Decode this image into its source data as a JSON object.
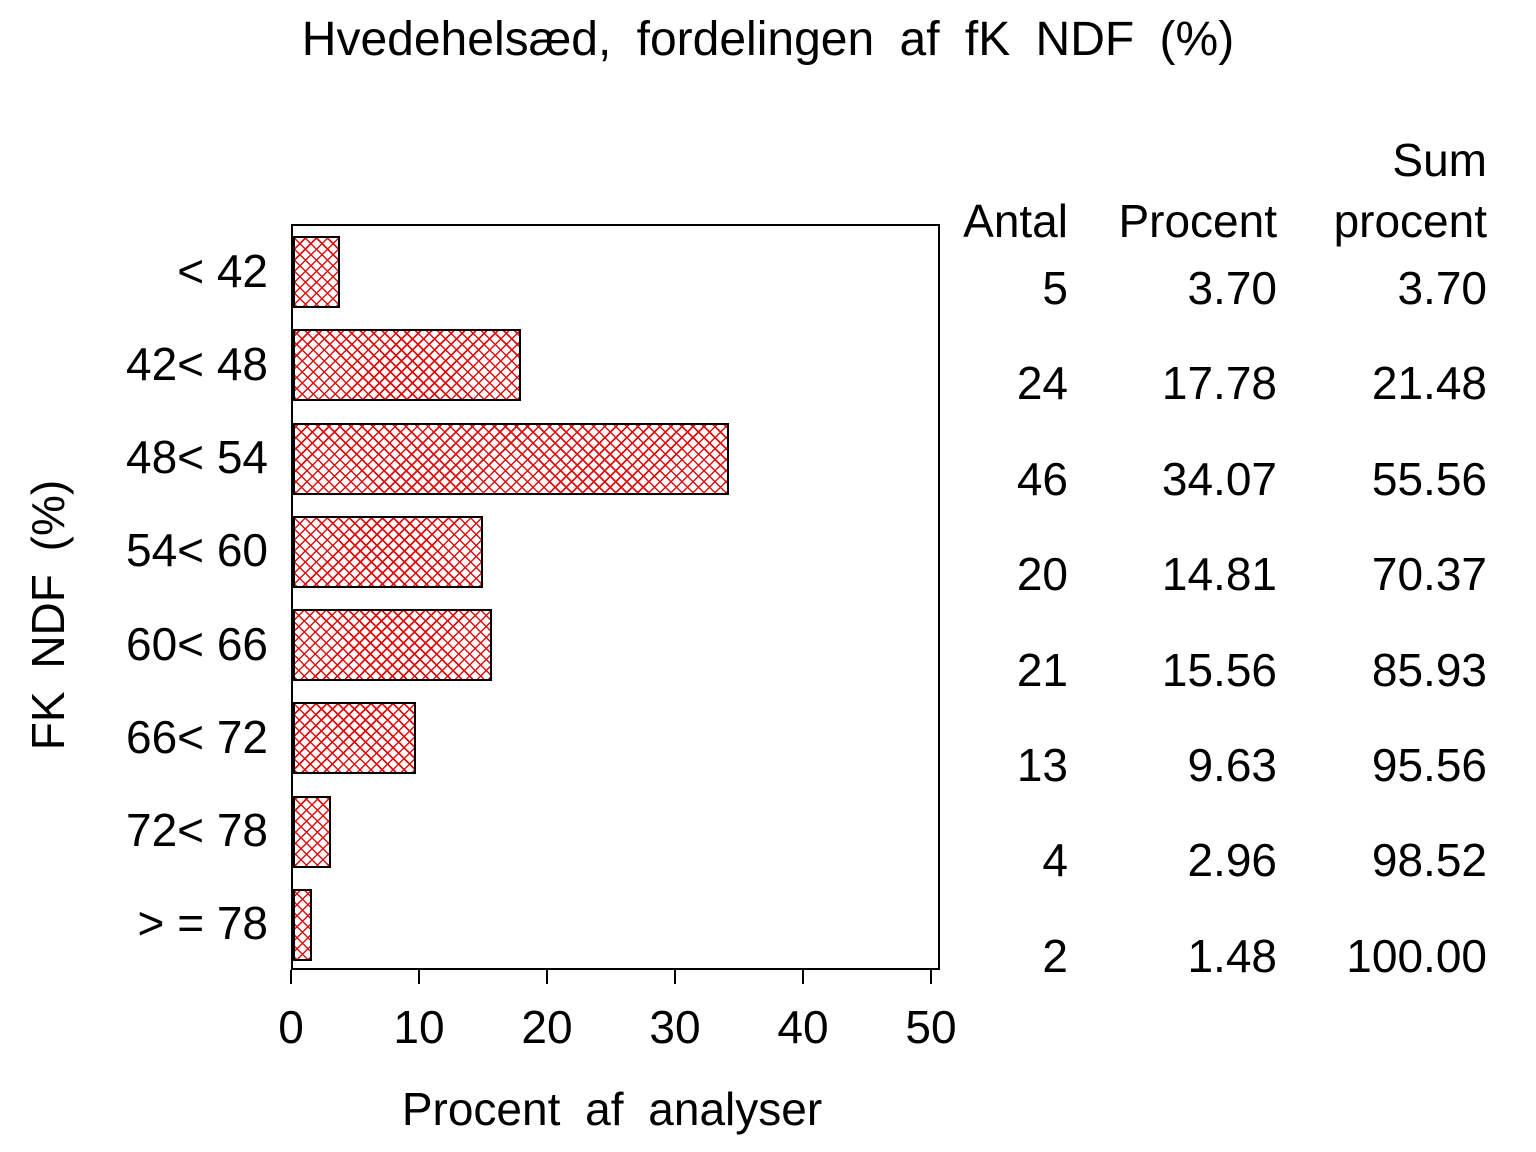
{
  "colors": {
    "bar_hatch": "#e01010",
    "axis": "#000000"
  },
  "chart_data": {
    "type": "bar",
    "orientation": "horizontal",
    "title": "Hvedehelsæd, fordelingen af fK NDF (%)",
    "xlabel": "Procent af analyser",
    "ylabel": "FK NDF (%)",
    "xlim": [
      0,
      50
    ],
    "xticks": [
      0,
      10,
      20,
      30,
      40,
      50
    ],
    "grid": false,
    "categories": [
      "< 42",
      "42< 48",
      "48< 54",
      "54< 60",
      "60< 66",
      "66< 72",
      "72< 78",
      "> = 78"
    ],
    "series": [
      {
        "name": "Procent af analyser",
        "values": [
          3.7,
          17.78,
          34.07,
          14.81,
          15.56,
          9.63,
          2.96,
          1.48
        ]
      }
    ],
    "table": {
      "headers": {
        "antal": "Antal",
        "procent": "Procent",
        "sum_line1": "Sum",
        "sum_line2": "procent"
      },
      "antal": [
        "5",
        "24",
        "46",
        "20",
        "21",
        "13",
        "4",
        "2"
      ],
      "procent": [
        "3.70",
        "17.78",
        "34.07",
        "14.81",
        "15.56",
        "9.63",
        "2.96",
        "1.48"
      ],
      "sum_procent": [
        "3.70",
        "21.48",
        "55.56",
        "70.37",
        "85.93",
        "95.56",
        "98.52",
        "100.00"
      ]
    }
  }
}
